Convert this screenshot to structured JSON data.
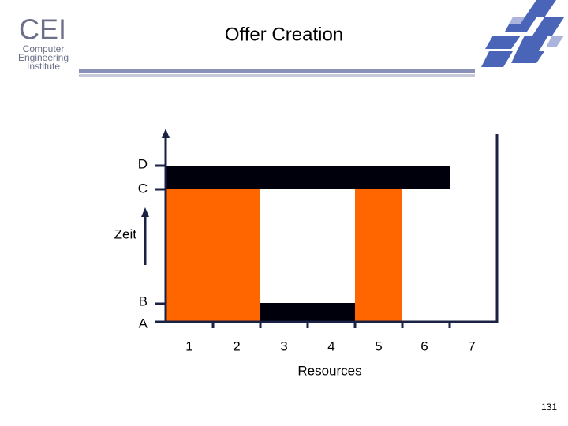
{
  "header": {
    "title": "Offer Creation",
    "logo": {
      "mark": "CEI",
      "lines": [
        "Computer",
        "Engineering",
        "Institute"
      ]
    }
  },
  "diagram": {
    "time_levels": [
      "D",
      "C",
      "B",
      "A"
    ],
    "y_axis_label": "Zeit",
    "resources": [
      "1",
      "2",
      "3",
      "4",
      "5",
      "6",
      "7"
    ],
    "x_axis_label": "Resources"
  },
  "footer": {
    "page_number": "131"
  }
}
